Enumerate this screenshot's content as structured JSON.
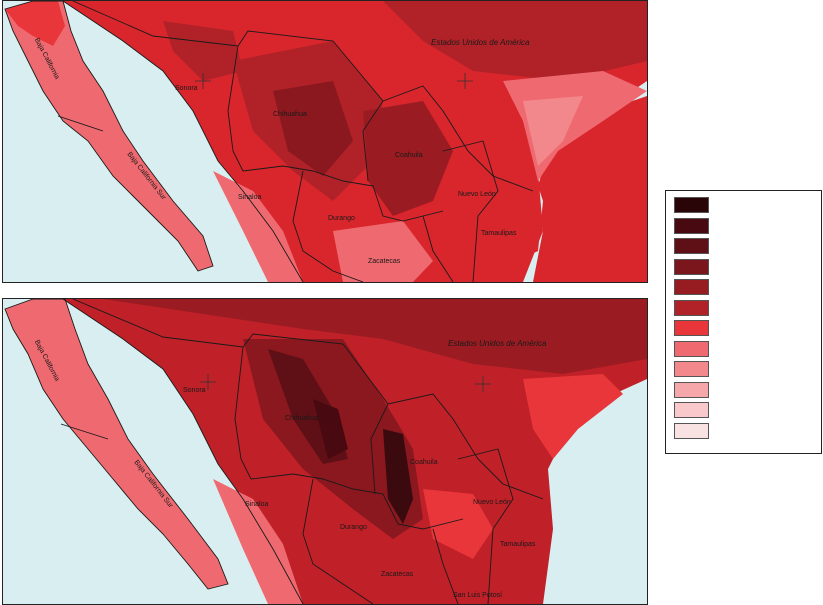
{
  "maps": [
    {
      "id": "top",
      "labels": {
        "usa": "Estados Unidos de América",
        "baja_california": "Baja California",
        "baja_california_sur": "Baja California Sur",
        "sonora": "Sonora",
        "chihuahua": "Chihuahua",
        "coahuila": "Coahuila",
        "sinaloa": "Sinaloa",
        "durango": "Durango",
        "nuevo_leon": "Nuevo León",
        "tamaulipas": "Tamaulipas",
        "zacatecas": "Zacatecas"
      }
    },
    {
      "id": "bottom",
      "labels": {
        "usa": "Estados Unidos de América",
        "baja_california": "Baja California",
        "baja_california_sur": "Baja California Sur",
        "sonora": "Sonora",
        "chihuahua": "Chihuahua",
        "coahuila": "Coahuila",
        "sinaloa": "Sinaloa",
        "durango": "Durango",
        "nuevo_leon": "Nuevo León",
        "tamaulipas": "Tamaulipas",
        "zacatecas": "Zacatecas",
        "san_luis_potosi": "San Luis Potosí"
      }
    }
  ],
  "legend": {
    "classes": [
      "#2a0508",
      "#480a10",
      "#5e1016",
      "#7a161c",
      "#961c22",
      "#b02228",
      "#e8363a",
      "#ef6a70",
      "#f2888c",
      "#f5a7aa",
      "#f8c8ca",
      "#f9e2e2"
    ]
  },
  "colors": {
    "water": "#d9eef0",
    "border": "#1a1a1a"
  }
}
